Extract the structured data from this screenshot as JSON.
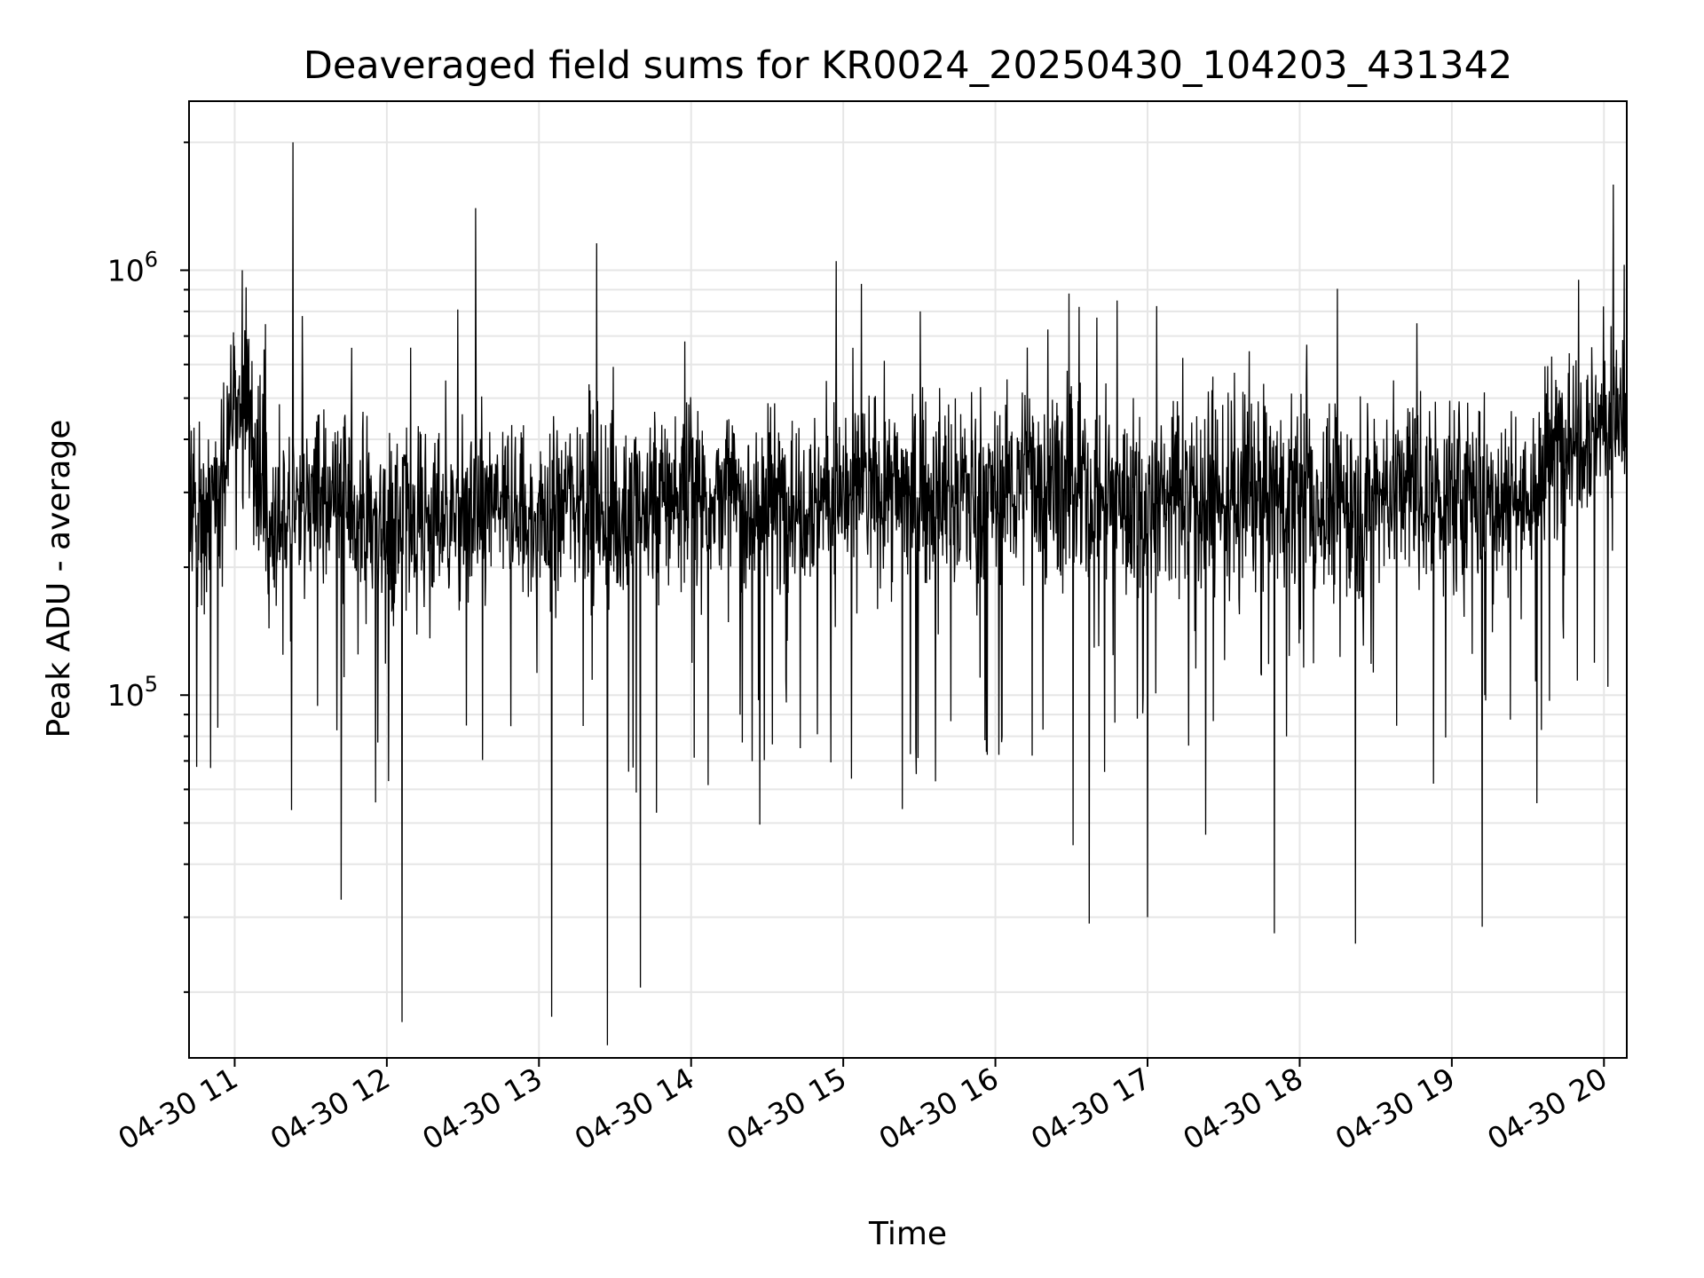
{
  "chart_data": {
    "type": "line",
    "title": "Deaveraged field sums for KR0024_20250430_104203_431342",
    "xlabel": "Time",
    "ylabel": "Peak ADU - average",
    "yscale": "log",
    "grid": true,
    "legend": "none",
    "colors": {
      "line": "#000000",
      "grid": "#e6e6e6",
      "axes": "#000000",
      "background": "#ffffff"
    },
    "x_ticks": [
      "04-30 11",
      "04-30 12",
      "04-30 13",
      "04-30 14",
      "04-30 15",
      "04-30 16",
      "04-30 17",
      "04-30 18",
      "04-30 19",
      "04-30 20"
    ],
    "y_ticks": [
      {
        "base": "10",
        "exp": "5",
        "value": 100000
      },
      {
        "base": "10",
        "exp": "6",
        "value": 1000000
      }
    ],
    "xlim": [
      "2025-04-30 10:42",
      "2025-04-30 20:09"
    ],
    "ylim": [
      14000,
      2500000
    ],
    "series": [
      {
        "x": [
          "2025-04-30 10:42",
          "2025-04-30 10:55",
          "2025-04-30 11:00",
          "2025-04-30 11:05",
          "2025-04-30 11:15",
          "2025-04-30 11:25",
          "2025-04-30 11:40",
          "2025-04-30 12:00",
          "2025-04-30 12:15",
          "2025-04-30 12:30",
          "2025-04-30 12:45",
          "2025-04-30 13:00",
          "2025-04-30 13:15",
          "2025-04-30 13:30",
          "2025-04-30 13:45",
          "2025-04-30 14:00",
          "2025-04-30 14:15",
          "2025-04-30 14:30",
          "2025-04-30 14:45",
          "2025-04-30 15:00",
          "2025-04-30 15:15",
          "2025-04-30 15:30",
          "2025-04-30 15:45",
          "2025-04-30 16:00",
          "2025-04-30 16:15",
          "2025-04-30 16:30",
          "2025-04-30 16:45",
          "2025-04-30 17:00",
          "2025-04-30 17:15",
          "2025-04-30 17:30",
          "2025-04-30 17:45",
          "2025-04-30 18:00",
          "2025-04-30 18:15",
          "2025-04-30 18:30",
          "2025-04-30 18:45",
          "2025-04-30 19:00",
          "2025-04-30 19:15",
          "2025-04-30 19:30",
          "2025-04-30 19:45",
          "2025-04-30 20:00",
          "2025-04-30 20:09"
        ],
        "y": [
          270000,
          300000,
          520000,
          420000,
          230000,
          280000,
          300000,
          250000,
          270000,
          260000,
          280000,
          250000,
          310000,
          260000,
          290000,
          300000,
          290000,
          280000,
          300000,
          300000,
          310000,
          290000,
          300000,
          300000,
          330000,
          290000,
          300000,
          280000,
          310000,
          290000,
          300000,
          290000,
          280000,
          300000,
          310000,
          290000,
          300000,
          290000,
          420000,
          450000,
          460000
        ]
      },
      {
        "x": [
          "2025-04-30 11:03",
          "2025-04-30 11:23",
          "2025-04-30 12:35",
          "2025-04-30 16:33",
          "2025-04-30 19:50",
          "2025-04-30 20:08"
        ],
        "y": [
          1000000,
          2000000,
          1400000,
          820000,
          950000,
          1030000
        ]
      },
      {
        "x": [
          "2025-04-30 11:42",
          "2025-04-30 12:06",
          "2025-04-30 13:05",
          "2025-04-30 13:27",
          "2025-04-30 13:40",
          "2025-04-30 16:37",
          "2025-04-30 17:00",
          "2025-04-30 17:50",
          "2025-04-30 18:22",
          "2025-04-30 19:12"
        ],
        "y": [
          33000,
          17000,
          17500,
          15000,
          20500,
          29000,
          30000,
          27500,
          26000,
          28500
        ]
      }
    ]
  }
}
